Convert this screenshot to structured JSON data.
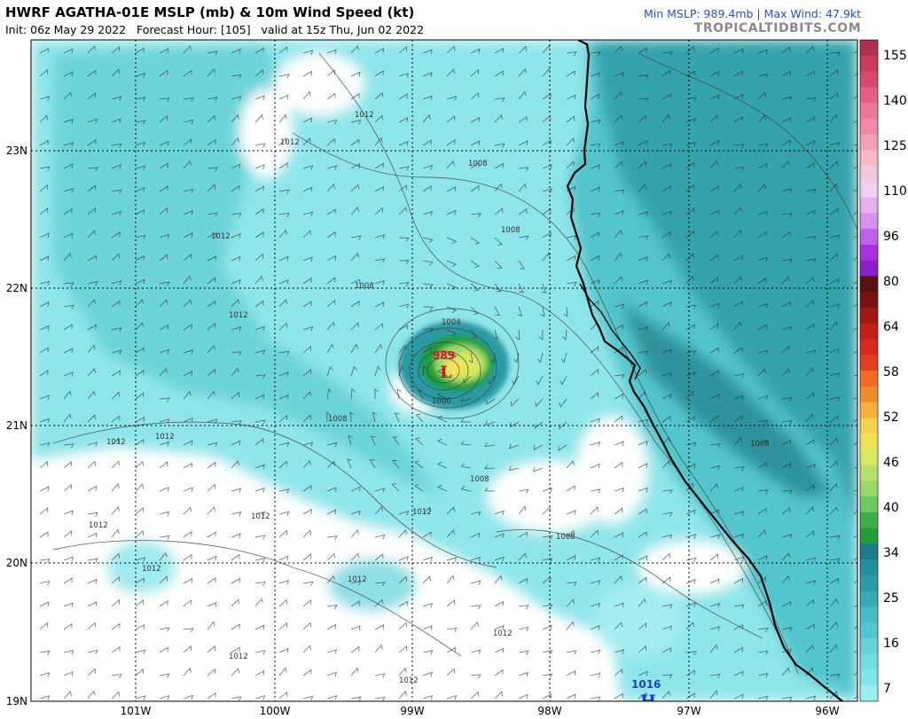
{
  "header": {
    "title": "HWRF AGATHA-01E MSLP (mb) & 10m Wind Speed (kt)",
    "subtitle": "Init: 06z May 29 2022   Forecast Hour: [105]   valid at 15z Thu, Jun 02 2022",
    "stats": "Min MSLP: 989.4mb | Max Wind: 47.9kt",
    "brand": "TROPICALTIDBITS.COM"
  },
  "map": {
    "lat_labels": [
      "23N",
      "22N",
      "21N",
      "20N",
      "19N"
    ],
    "lon_labels": [
      "101W",
      "100W",
      "99W",
      "98W",
      "97W",
      "96W"
    ],
    "low_center": {
      "pressure": "989",
      "symbol": "L"
    },
    "high_center": {
      "pressure": "1016",
      "symbol": "H"
    },
    "isobar_labels": [
      "1012",
      "1012",
      "1008",
      "1012",
      "1008",
      "1012",
      "1004",
      "1000",
      "1008",
      "1012",
      "1008",
      "1008",
      "1012",
      "1012",
      "1012",
      "1008",
      "1008",
      "1012",
      "1012",
      "1012",
      "1012",
      "1012",
      "1012"
    ]
  },
  "colorbar": {
    "labels": [
      "155",
      "140",
      "125",
      "110",
      "96",
      "80",
      "64",
      "58",
      "52",
      "46",
      "40",
      "34",
      "25",
      "16",
      "7"
    ],
    "colors": {
      "wind_7": "#7ee6ea",
      "wind_16": "#4fc8cf",
      "wind_25": "#2a9aa4",
      "wind_34": "#1f9e3a",
      "wind_40": "#9bd86a",
      "wind_46": "#f0e35a",
      "wind_52": "#f08a2c",
      "wind_58": "#d42a1e",
      "wind_64": "#5a1010",
      "wind_80": "#a830e0",
      "wind_96": "#f0d0f0",
      "wind_125": "#f08aa8",
      "wind_155": "#b03050",
      "coastline": "#000000",
      "grid": "#000000"
    }
  }
}
